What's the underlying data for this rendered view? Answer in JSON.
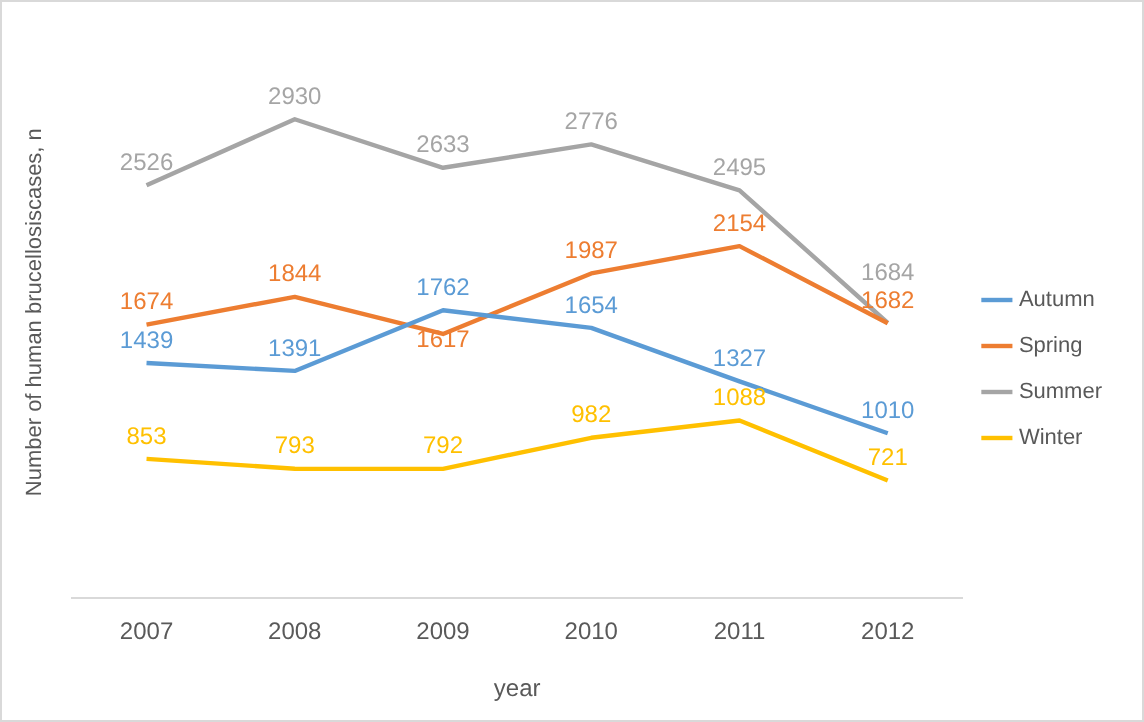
{
  "chart_data": {
    "type": "line",
    "xlabel": "year",
    "ylabel": "Number of human brucellosiscases, n",
    "categories": [
      "2007",
      "2008",
      "2009",
      "2010",
      "2011",
      "2012"
    ],
    "series": [
      {
        "name": "Autumn",
        "color": "#5b9bd5",
        "values": [
          1439,
          1391,
          1762,
          1654,
          1327,
          1010
        ]
      },
      {
        "name": "Spring",
        "color": "#ed7d31",
        "values": [
          1674,
          1844,
          1617,
          1987,
          2154,
          1682
        ]
      },
      {
        "name": "Summer",
        "color": "#a5a5a5",
        "values": [
          2526,
          2930,
          2633,
          2776,
          2495,
          1684
        ]
      },
      {
        "name": "Winter",
        "color": "#ffc000",
        "values": [
          853,
          793,
          792,
          982,
          1088,
          721
        ]
      }
    ],
    "data_labels": true,
    "legend": "right",
    "grid": false,
    "marker": "none",
    "line_style": "solid"
  }
}
